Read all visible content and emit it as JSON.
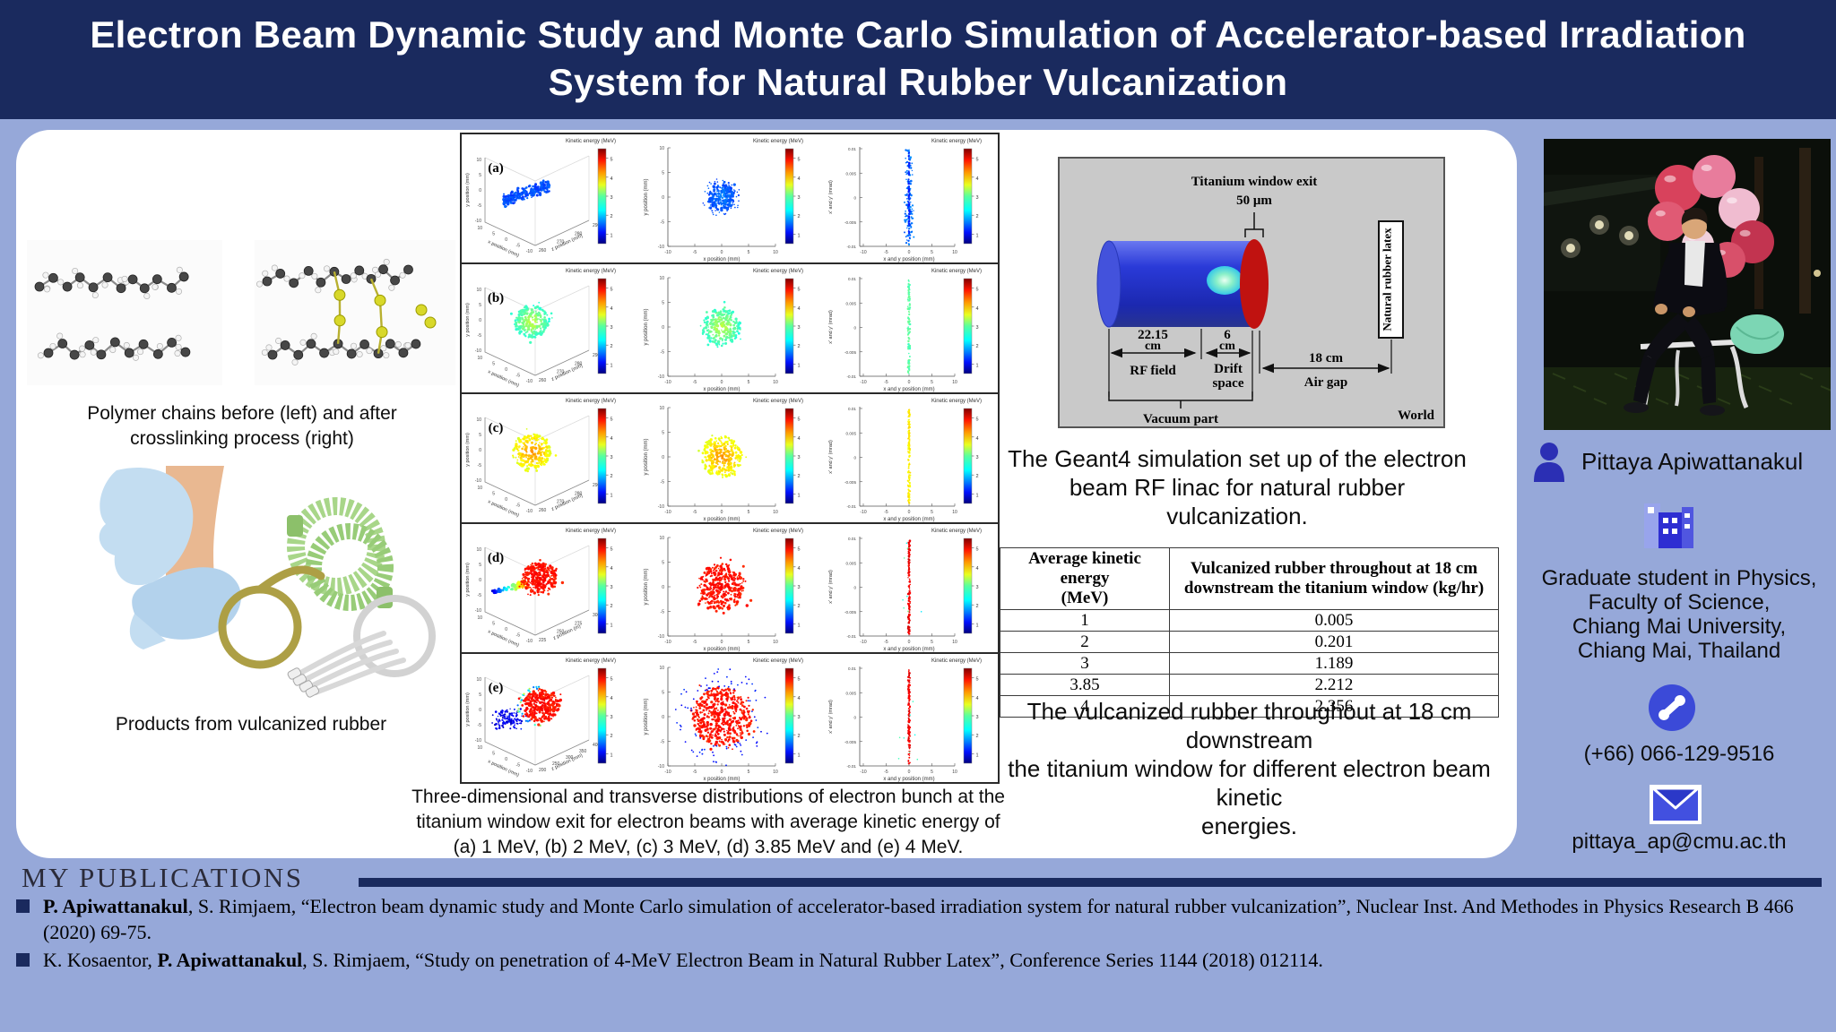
{
  "title_lines": [
    "Electron Beam Dynamic Study and Monte Carlo Simulation of Accelerator-based Irradiation",
    "System for Natural Rubber Vulcanization"
  ],
  "left_column": {
    "polymer_caption_lines": [
      "Polymer chains before (left) and after",
      "crosslinking process (right)"
    ],
    "products_caption": "Products from vulcanized rubber"
  },
  "plots": {
    "colorbar_title": "Kinetic energy (MeV)",
    "colorbar_ticks": [
      "5",
      "4",
      "3",
      "2",
      "1"
    ],
    "axes": {
      "y_label": "y position (mm)",
      "x_label": "x position (mm)",
      "xy_ticks": [
        "10",
        "5",
        "0",
        "-5",
        "-10"
      ],
      "x_ticks": [
        "-10",
        "-5",
        "0",
        "5",
        "10"
      ],
      "phase_y_label": "x' and y' (mrad)",
      "phase_x_label": "x and y position (mm)",
      "phase_y_ticks": [
        "0.01",
        "0.005",
        "0",
        "-0.005",
        "-0.01"
      ]
    },
    "rows": [
      {
        "label": "(a)",
        "energy": "1 MeV",
        "z_label": "z position (mm)",
        "z_ticks": [
          "260",
          "270",
          "280",
          "290"
        ]
      },
      {
        "label": "(b)",
        "energy": "2 MeV",
        "z_label": "z position (mm)",
        "z_ticks": [
          "260",
          "270",
          "280",
          "290"
        ]
      },
      {
        "label": "(c)",
        "energy": "3 MeV",
        "z_label": "z position (mm)",
        "z_ticks": [
          "260",
          "270",
          "280",
          "290"
        ]
      },
      {
        "label": "(d)",
        "energy": "3.85 MeV",
        "z_label": "z position (m)",
        "z_ticks": [
          "225",
          "250",
          "275",
          "300"
        ]
      },
      {
        "label": "(e)",
        "energy": "4 MeV",
        "z_label": "z position (mm)",
        "z_ticks": [
          "200",
          "250",
          "300",
          "350",
          "400"
        ]
      }
    ],
    "caption_lines": [
      "Three-dimensional and transverse distributions of electron bunch at the",
      "titanium window exit for electron beams with average kinetic energy of",
      "(a) 1 MeV, (b) 2 MeV, (c) 3 MeV, (d) 3.85 MeV and (e) 4 MeV."
    ]
  },
  "diagram": {
    "window_label": "Titanium window exit",
    "window_size": "50 μm",
    "rf_dim_lines": [
      "22.15",
      "cm"
    ],
    "rf_label": "RF field",
    "drift_dim_lines": [
      "6",
      "cm"
    ],
    "drift_label_lines": [
      "Drift",
      "space"
    ],
    "air_dim": "18 cm",
    "air_label": "Air gap",
    "vacuum_label": "Vacuum part",
    "latex_label": "Natural rubber latex",
    "world_label": "World",
    "caption_lines": [
      "The Geant4 simulation set up of the electron",
      "beam RF linac for natural rubber vulcanization."
    ]
  },
  "table": {
    "header_col1_lines": [
      "Average kinetic energy",
      "(MeV)"
    ],
    "header_col2_lines": [
      "Vulcanized rubber throughout at 18 cm",
      "downstream the titanium window (kg/hr)"
    ],
    "rows": [
      [
        "1",
        "0.005"
      ],
      [
        "2",
        "0.201"
      ],
      [
        "3",
        "1.189"
      ],
      [
        "3.85",
        "2.212"
      ],
      [
        "4",
        "2.356"
      ]
    ],
    "caption_lines": [
      "The vulcanized rubber throughout at 18 cm downstream",
      "the titanium window for different electron beam kinetic",
      "energies."
    ]
  },
  "profile": {
    "name": "Pittaya Apiwattanakul",
    "affiliation_lines": [
      "Graduate student in Physics,",
      "Faculty of Science,",
      "Chiang Mai University,",
      "Chiang Mai, Thailand"
    ],
    "phone": "(+66) 066-129-9516",
    "email": "pittaya_ap@cmu.ac.th"
  },
  "publications": {
    "heading": "MY PUBLICATIONS",
    "items": [
      [
        {
          "text": "P. Apiwattanakul",
          "bold": true
        },
        {
          "text": ", S. Rimjaem, “Electron beam dynamic study and Monte Carlo simulation of accelerator-based irradiation system for natural rubber vulcanization”, Nuclear Inst. And Methodes in Physics Research B 466 (2020) 69-75.",
          "bold": false
        }
      ],
      [
        {
          "text": "K. Kosaentor, ",
          "bold": false
        },
        {
          "text": "P. Apiwattanakul",
          "bold": true
        },
        {
          "text": ", S. Rimjaem, “Study on penetration of 4-MeV Electron Beam in Natural Rubber Latex”, Conference Series 1144 (2018) 012114.",
          "bold": false
        }
      ]
    ]
  },
  "colors": {
    "header_bg": "#1a2a5e",
    "page_bg": "#96a8d9",
    "accent_blue": "#3b4ad8",
    "diagram_bg": "#c9c9c9",
    "beam_red": "#c01210",
    "row_beam_colors": [
      "#2244d8",
      "#3fd2c8",
      "#b8e030",
      "#e02010",
      "#e02010"
    ]
  }
}
